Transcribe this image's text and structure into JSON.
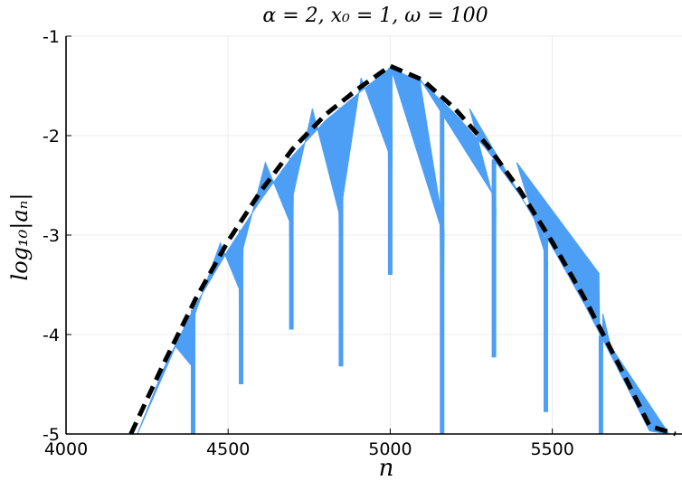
{
  "chart_data": {
    "type": "area",
    "title": "α = 2, x₀ = 1, ω = 100",
    "xlabel": "n",
    "ylabel": "log₁₀|aₙ|",
    "xlim": [
      4000,
      5900
    ],
    "ylim": [
      -5,
      -1
    ],
    "xticks": [
      4000,
      4500,
      5000,
      5500
    ],
    "yticks": [
      -5,
      -4,
      -3,
      -2,
      -1
    ],
    "xtick_labels": [
      "4000",
      "4500",
      "5000",
      "5500"
    ],
    "ytick_labels": [
      "-5",
      "-4",
      "-3",
      "-2",
      "-1"
    ],
    "grid": true,
    "colors": {
      "oscillation": "#4c9ff5",
      "envelope": "#000000",
      "grid": "#ebebeb"
    },
    "series": [
      {
        "style": "dashed-black",
        "x": [
          4200,
          4300,
          4400,
          4500,
          4600,
          4700,
          4800,
          4900,
          5000,
          5100,
          5200,
          5300,
          5400,
          5500,
          5600,
          5700,
          5800,
          5880
        ],
        "y": [
          -5.0,
          -4.3,
          -3.64,
          -3.06,
          -2.56,
          -2.13,
          -1.79,
          -1.53,
          -1.3,
          -1.44,
          -1.73,
          -2.1,
          -2.55,
          -3.07,
          -3.64,
          -4.27,
          -4.92,
          -5.0
        ]
      },
      {
        "style": "filled-blue",
        "upper_x": [
          4220,
          4300,
          4400,
          4500,
          4600,
          4700,
          4800,
          4900,
          5000,
          5100,
          5200,
          5300,
          5400,
          5500,
          5600,
          5700,
          5800,
          5860
        ],
        "upper_y": [
          -5.0,
          -4.35,
          -3.7,
          -3.15,
          -2.65,
          -2.2,
          -1.85,
          -1.58,
          -1.32,
          -1.47,
          -1.78,
          -2.15,
          -2.6,
          -3.12,
          -3.7,
          -4.33,
          -4.97,
          -5.0
        ],
        "lobe_peaks_x": [
          4338,
          4476,
          4615,
          4760,
          4910,
          5000,
          5090,
          5245,
          5390,
          5535,
          5680
        ],
        "lobe_peaks_y": [
          -4.12,
          -3.08,
          -2.27,
          -1.73,
          -1.42,
          -1.3,
          -1.42,
          -1.73,
          -2.27,
          -3.08,
          -4.12
        ],
        "dips_x": [
          4392,
          4540,
          4695,
          4848,
          5000,
          5160,
          5320,
          5480,
          5650
        ],
        "dips_y": [
          -5.0,
          -4.5,
          -3.95,
          -4.32,
          -3.4,
          -5.0,
          -4.23,
          -4.78,
          -5.0
        ]
      }
    ]
  }
}
